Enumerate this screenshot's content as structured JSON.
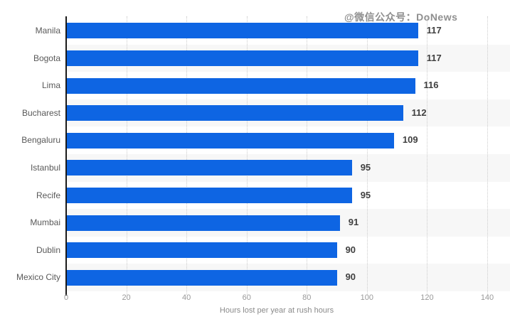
{
  "watermark": {
    "text": "@微信公众号：DoNews"
  },
  "colors": {
    "bar": "#0e65e3",
    "row_stripe": "#f7f7f7",
    "axis_line": "#1a1a1a",
    "gridline": "#cccccc",
    "value_label": "#404040",
    "category_label": "#595959",
    "tick_label": "#999999",
    "watermark": "#8f8f8f"
  },
  "chart_data": {
    "type": "bar",
    "orientation": "horizontal",
    "categories": [
      "Manila",
      "Bogota",
      "Lima",
      "Bucharest",
      "Bengaluru",
      "Istanbul",
      "Recife",
      "Mumbai",
      "Dublin",
      "Mexico City"
    ],
    "values": [
      117,
      117,
      116,
      112,
      109,
      95,
      95,
      91,
      90,
      90
    ],
    "value_labels": [
      "117",
      "117",
      "116",
      "112",
      "109",
      "95",
      "95",
      "91",
      "90",
      "90"
    ],
    "title": "",
    "xlabel": "Hours lost per year at rush hours",
    "ylabel": "",
    "xlim": [
      0,
      140
    ],
    "xticks": [
      0,
      20,
      40,
      60,
      80,
      100,
      120,
      140
    ],
    "grid": "vertical-dotted",
    "legend": "none",
    "bar_color": "#0e65e3",
    "alternating_row_background": true
  }
}
